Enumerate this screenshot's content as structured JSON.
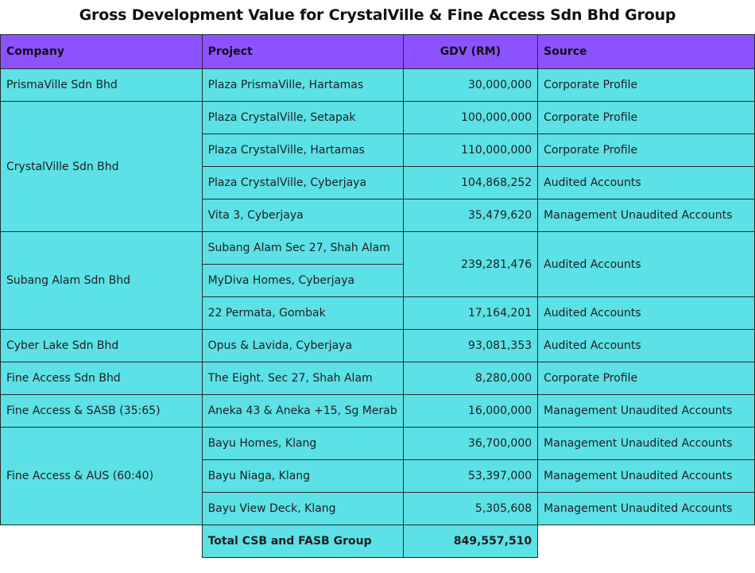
{
  "title": "Gross Development Value for CrystalVille & Fine Access Sdn Bhd Group",
  "headers": {
    "company": "Company",
    "project": "Project",
    "gdv": "GDV (RM)",
    "source": "Source"
  },
  "rows": [
    {
      "company": "PrismaVille Sdn Bhd",
      "project": "Plaza PrismaVille, Hartamas",
      "gdv": "30,000,000",
      "source": "Corporate Profile"
    },
    {
      "company": "CrystalVille Sdn Bhd",
      "project": "Plaza CrystalVille, Setapak",
      "gdv": "100,000,000",
      "source": "Corporate Profile"
    },
    {
      "project": "Plaza CrystalVille, Hartamas",
      "gdv": "110,000,000",
      "source": "Corporate Profile"
    },
    {
      "project": "Plaza CrystalVille, Cyberjaya",
      "gdv": "104,868,252",
      "source": "Audited Accounts"
    },
    {
      "project": "Vita 3, Cyberjaya",
      "gdv": "35,479,620",
      "source": "Management Unaudited Accounts"
    },
    {
      "company": "Subang Alam Sdn Bhd",
      "project": "Subang Alam Sec 27, Shah Alam",
      "gdv": "239,281,476",
      "source": "Audited Accounts"
    },
    {
      "project": "MyDiva Homes, Cyberjaya"
    },
    {
      "project": "22 Permata, Gombak",
      "gdv": "17,164,201",
      "source": "Audited Accounts"
    },
    {
      "company": "Cyber Lake Sdn Bhd",
      "project": "Opus & Lavida, Cyberjaya",
      "gdv": "93,081,353",
      "source": "Audited Accounts"
    },
    {
      "company": "Fine Access Sdn Bhd",
      "project": "The Eight. Sec 27, Shah Alam",
      "gdv": "8,280,000",
      "source": "Corporate Profile"
    },
    {
      "company": "Fine Access & SASB (35:65)",
      "project": "Aneka 43 & Aneka +15, Sg Merab",
      "gdv": "16,000,000",
      "source": "Management Unaudited Accounts"
    },
    {
      "company": "Fine Access & AUS (60:40)",
      "project": "Bayu Homes, Klang",
      "gdv": "36,700,000",
      "source": "Management Unaudited Accounts"
    },
    {
      "project": "Bayu Niaga, Klang",
      "gdv": "53,397,000",
      "source": "Management Unaudited Accounts"
    },
    {
      "project": "Bayu View Deck, Klang",
      "gdv": "5,305,608",
      "source": "Management Unaudited Accounts"
    }
  ],
  "total": {
    "label": "Total CSB and FASB Group",
    "gdv": "849,557,510"
  }
}
